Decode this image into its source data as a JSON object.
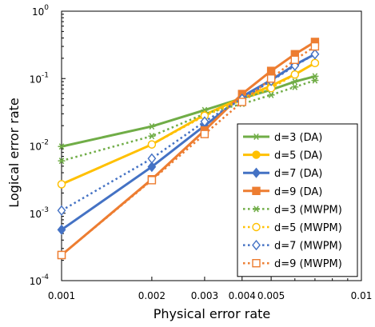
{
  "chart_data": {
    "type": "line",
    "xlabel": "Physical error rate",
    "ylabel": "Logical error rate",
    "x_scale": "log",
    "y_scale": "log",
    "xlim": [
      0.001,
      0.01
    ],
    "ylim": [
      0.0001,
      1
    ],
    "x_ticks": [
      {
        "value": 0.001,
        "label": "0.001"
      },
      {
        "value": 0.002,
        "label": "0.002"
      },
      {
        "value": 0.003,
        "label": "0.003"
      },
      {
        "value": 0.004,
        "label": "0.004"
      },
      {
        "value": 0.005,
        "label": "0.005"
      },
      {
        "value": 0.01,
        "label": "0.01"
      }
    ],
    "y_ticks": [
      {
        "value": 0.0001,
        "base": "10",
        "exp": "-4"
      },
      {
        "value": 0.001,
        "base": "10",
        "exp": "-3"
      },
      {
        "value": 0.01,
        "base": "10",
        "exp": "-2"
      },
      {
        "value": 0.1,
        "base": "10",
        "exp": "-1"
      },
      {
        "value": 1,
        "base": "10",
        "exp": "0"
      }
    ],
    "grid": false,
    "legend_position": "right",
    "series": [
      {
        "name": "d=3 (DA)",
        "color": "#70ad47",
        "dashed": false,
        "marker": "star",
        "filled": true,
        "x": [
          0.001,
          0.002,
          0.003,
          0.004,
          0.005,
          0.006,
          0.007
        ],
        "y": [
          0.0098,
          0.0195,
          0.034,
          0.051,
          0.068,
          0.09,
          0.108
        ]
      },
      {
        "name": "d=5 (DA)",
        "color": "#ffc000",
        "dashed": false,
        "marker": "circle",
        "filled": true,
        "x": [
          0.001,
          0.002,
          0.003,
          0.004,
          0.005,
          0.006,
          0.007
        ],
        "y": [
          0.0027,
          0.0105,
          0.029,
          0.052,
          0.078,
          0.115,
          0.17
        ]
      },
      {
        "name": "d=7 (DA)",
        "color": "#4472c4",
        "dashed": false,
        "marker": "diamond",
        "filled": true,
        "x": [
          0.001,
          0.002,
          0.003,
          0.004,
          0.005,
          0.006,
          0.007
        ],
        "y": [
          0.00057,
          0.0049,
          0.02,
          0.054,
          0.095,
          0.16,
          0.23
        ]
      },
      {
        "name": "d=9 (DA)",
        "color": "#ed7d31",
        "dashed": false,
        "marker": "square",
        "filled": true,
        "x": [
          0.001,
          0.002,
          0.003,
          0.004,
          0.005,
          0.006,
          0.007
        ],
        "y": [
          0.00024,
          0.0032,
          0.017,
          0.059,
          0.13,
          0.23,
          0.35
        ]
      },
      {
        "name": "d=3 (MWPM)",
        "color": "#70ad47",
        "dashed": true,
        "marker": "star",
        "filled": false,
        "x": [
          0.001,
          0.002,
          0.003,
          0.004,
          0.005,
          0.006,
          0.007
        ],
        "y": [
          0.006,
          0.014,
          0.03,
          0.042,
          0.057,
          0.075,
          0.094
        ]
      },
      {
        "name": "d=5 (MWPM)",
        "color": "#ffc000",
        "dashed": true,
        "marker": "circle",
        "filled": false,
        "x": [
          0.001,
          0.002,
          0.003,
          0.004,
          0.005,
          0.006,
          0.007
        ],
        "y": [
          0.0027,
          0.0105,
          0.028,
          0.048,
          0.072,
          0.115,
          0.17
        ]
      },
      {
        "name": "d=7 (MWPM)",
        "color": "#4472c4",
        "dashed": true,
        "marker": "diamond",
        "filled": false,
        "x": [
          0.001,
          0.002,
          0.003,
          0.004,
          0.005,
          0.006,
          0.007
        ],
        "y": [
          0.0011,
          0.0065,
          0.023,
          0.05,
          0.092,
          0.155,
          0.23
        ]
      },
      {
        "name": "d=9 (MWPM)",
        "color": "#ed7d31",
        "dashed": true,
        "marker": "square",
        "filled": false,
        "x": [
          0.001,
          0.002,
          0.003,
          0.004,
          0.005,
          0.006,
          0.007
        ],
        "y": [
          0.00024,
          0.0031,
          0.015,
          0.045,
          0.1,
          0.19,
          0.3
        ]
      }
    ]
  }
}
